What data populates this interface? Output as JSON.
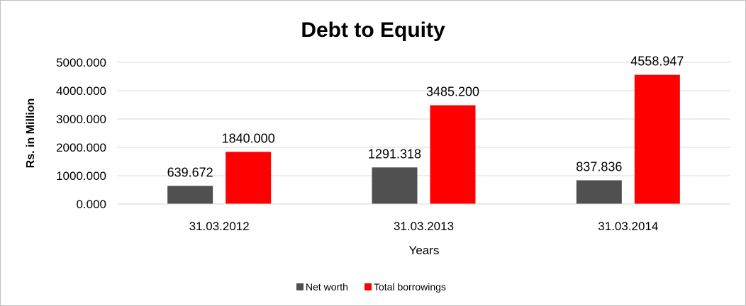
{
  "chart_data": {
    "type": "bar",
    "title": "Debt to Equity",
    "xlabel": "Years",
    "ylabel": "Rs. in Million",
    "categories": [
      "31.03.2012",
      "31.03.2013",
      "31.03.2014"
    ],
    "series": [
      {
        "name": "Net worth",
        "color": "#505050",
        "values": [
          639.672,
          1291.318,
          837.836
        ],
        "labels": [
          "639.672",
          "1291.318",
          "837.836"
        ]
      },
      {
        "name": "Total borrowings",
        "color": "#ff0000",
        "values": [
          1840.0,
          3485.2,
          4558.947
        ],
        "labels": [
          "1840.000",
          "3485.200",
          "4558.947"
        ]
      }
    ],
    "ylim": [
      0,
      5000
    ],
    "yticks": [
      0,
      1000,
      2000,
      3000,
      4000,
      5000
    ],
    "ytick_labels": [
      "0.000",
      "1000.000",
      "2000.000",
      "3000.000",
      "4000.000",
      "5000.000"
    ],
    "grid": true,
    "legend_position": "bottom"
  }
}
